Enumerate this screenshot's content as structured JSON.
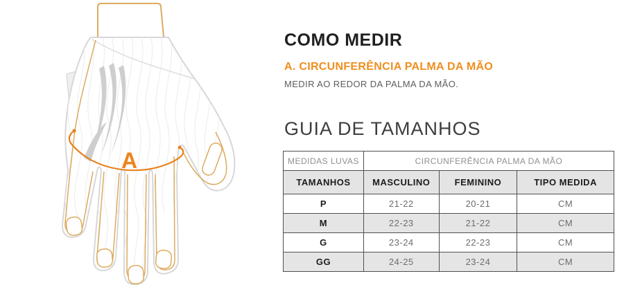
{
  "colors": {
    "accent_orange": "#ef8e1f",
    "arc_orange": "#e8831e",
    "glove_line_tan": "#dcaa5e",
    "glove_outline_gray": "#d7d7d7",
    "table_border": "#4f4f4f",
    "row_alt_bg": "#e5e5e5",
    "heading_text": "#1f1f1f",
    "muted_text": "#8f8f8f"
  },
  "how_to_measure": {
    "title": "COMO MEDIR",
    "measure_label": "A. CIRCUNFERÊNCIA PALMA DA MÃO",
    "measure_instruction": "MEDIR AO REDOR DA PALMA DA MÃO."
  },
  "glove_diagram": {
    "marker_label": "A"
  },
  "size_guide": {
    "title": "GUIA DE TAMANHOS",
    "table": {
      "group_header_left": "MEDIDAS LUVAS",
      "group_header_right": "CIRCUNFERÊNCIA PALMA DA MÃO",
      "columns": [
        "TAMANHOS",
        "MASCULINO",
        "FEMININO",
        "TIPO MEDIDA"
      ],
      "rows": [
        {
          "size": "P",
          "masculino": "21-22",
          "feminino": "20-21",
          "tipo_medida": "CM"
        },
        {
          "size": "M",
          "masculino": "22-23",
          "feminino": "21-22",
          "tipo_medida": "CM"
        },
        {
          "size": "G",
          "masculino": "23-24",
          "feminino": "22-23",
          "tipo_medida": "CM"
        },
        {
          "size": "GG",
          "masculino": "24-25",
          "feminino": "23-24",
          "tipo_medida": "CM"
        }
      ]
    }
  }
}
